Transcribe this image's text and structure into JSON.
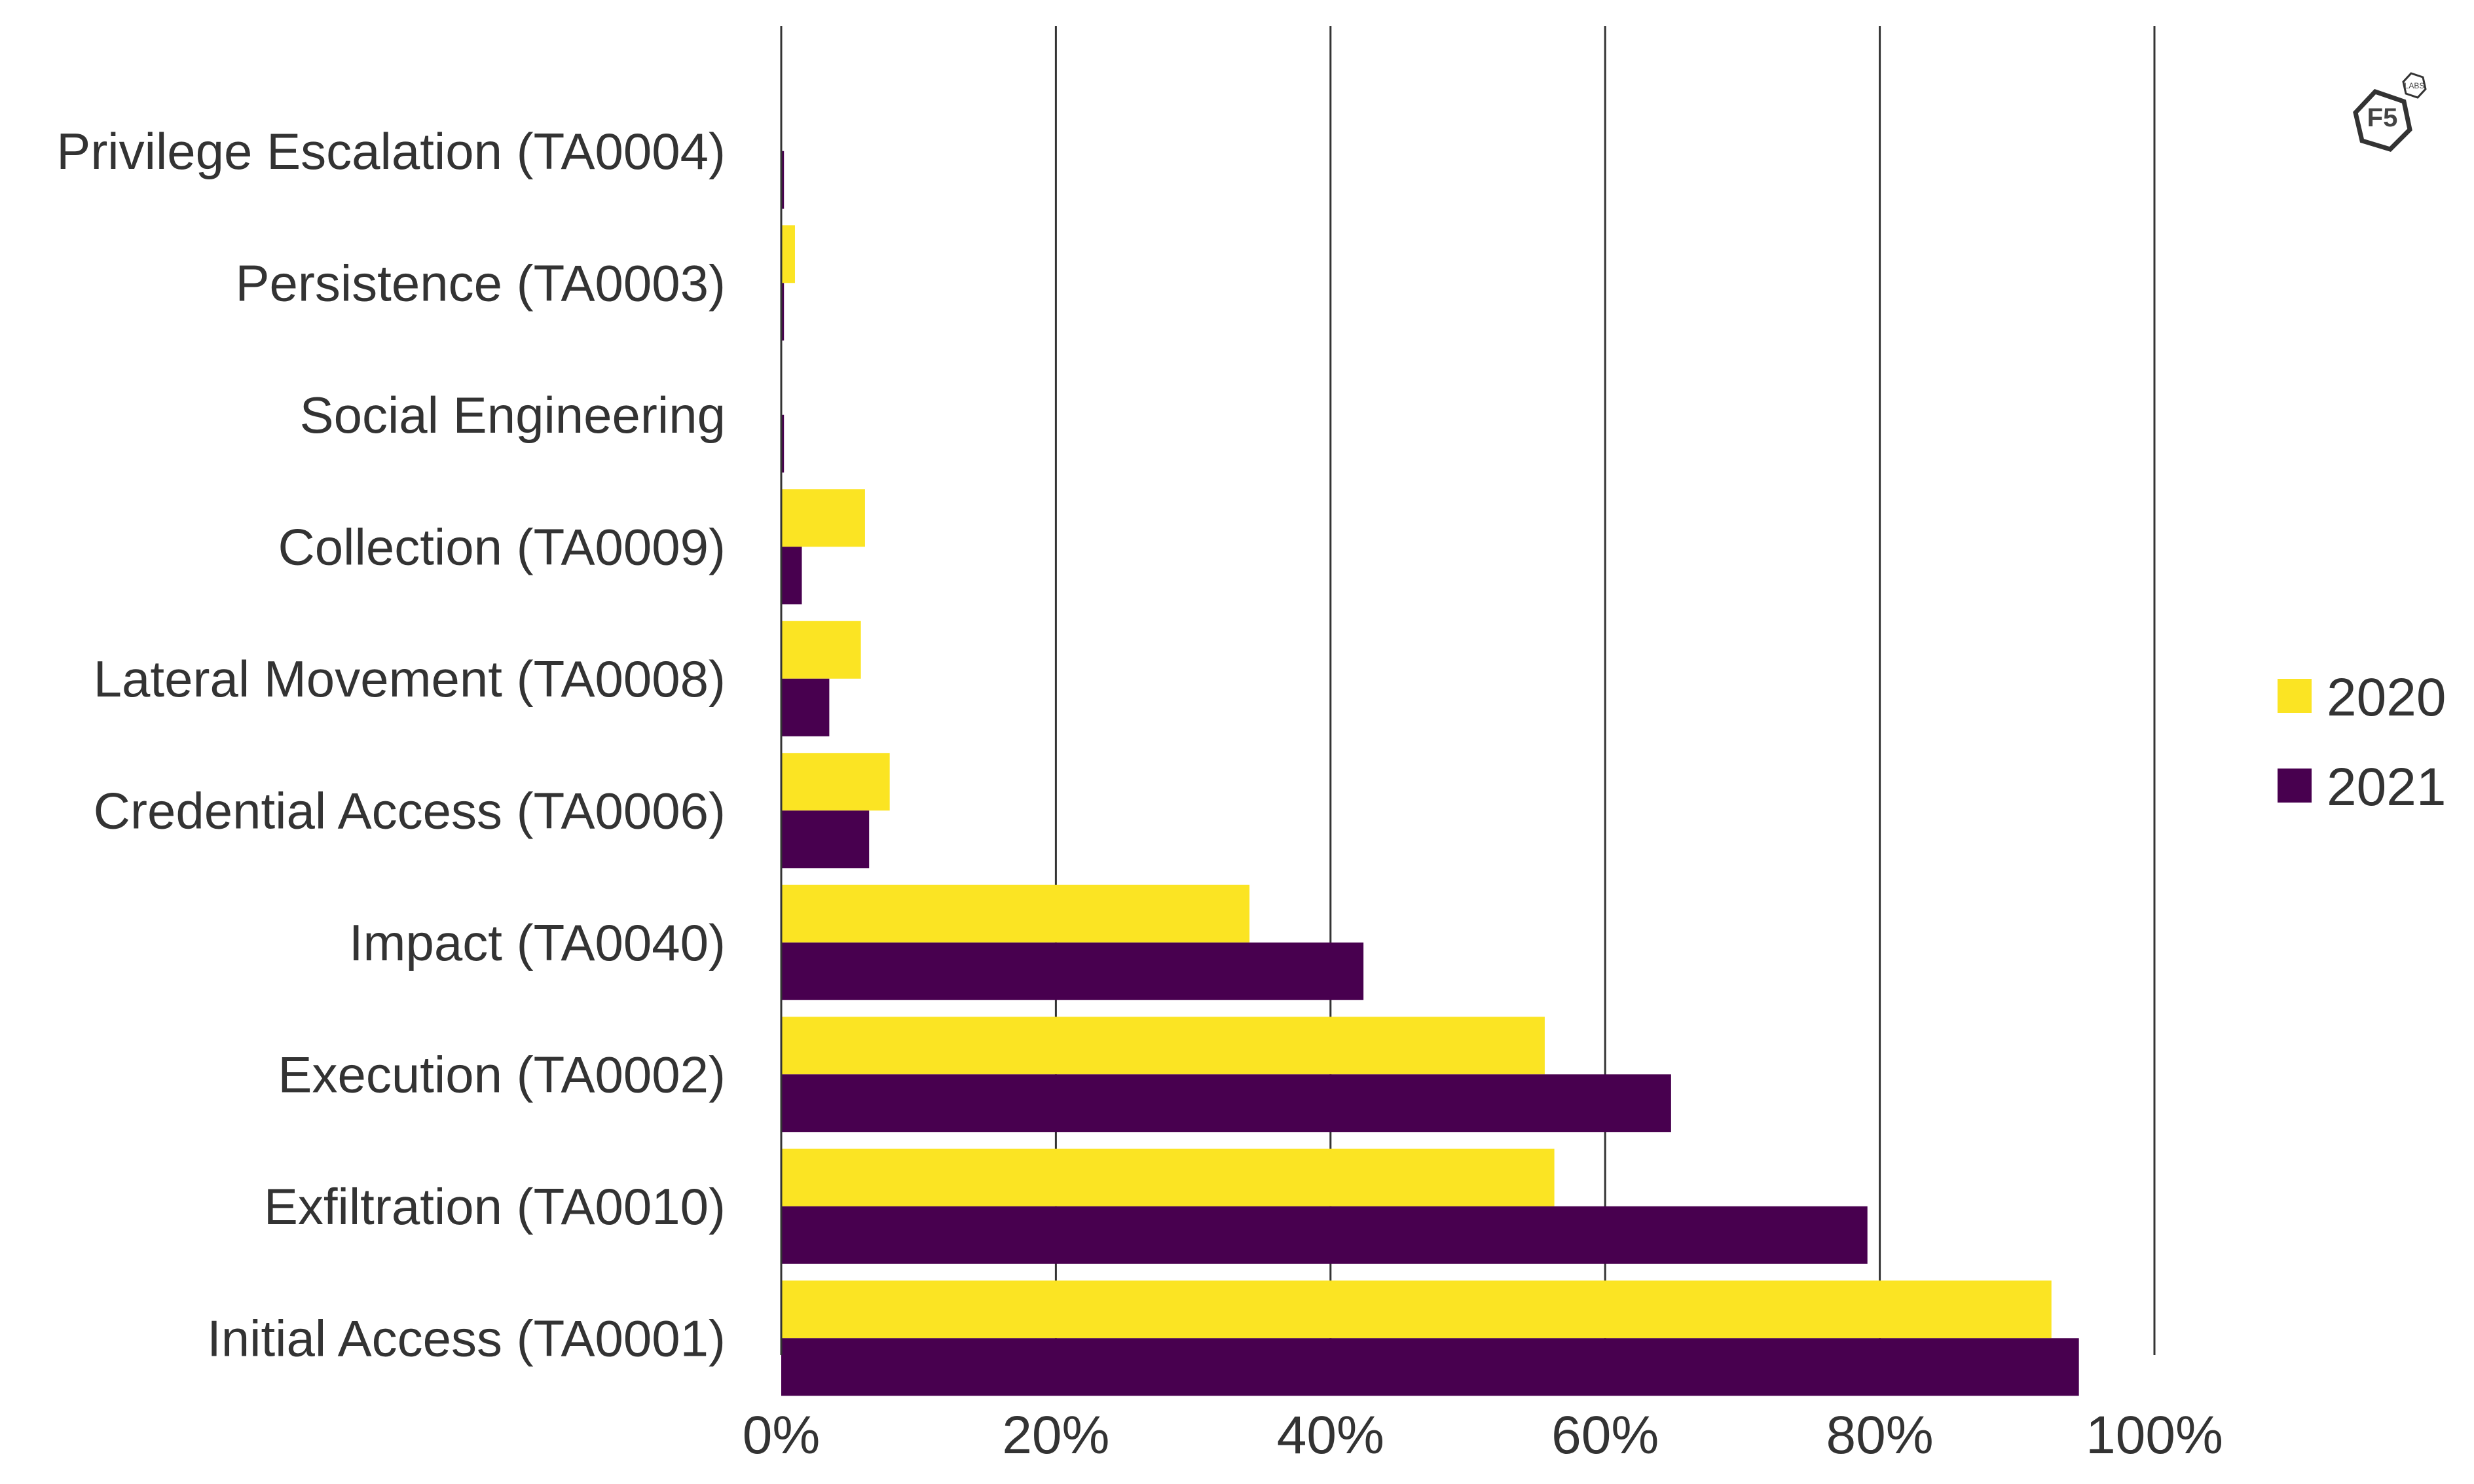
{
  "chart_data": {
    "type": "bar",
    "orientation": "horizontal",
    "categories": [
      "Privilege Escalation (TA0004)",
      "Persistence (TA0003)",
      "Social Engineering",
      "Collection (TA0009)",
      "Lateral Movement (TA0008)",
      "Credential Access (TA0006)",
      "Impact (TA0040)",
      "Execution (TA0002)",
      "Exfiltration (TA0010)",
      "Initial Access (TA0001)"
    ],
    "series": [
      {
        "name": "2020",
        "color": "#fbe423",
        "values": [
          0,
          1.0,
          0,
          6.1,
          5.8,
          7.9,
          34.1,
          55.6,
          56.3,
          92.5
        ]
      },
      {
        "name": "2021",
        "color": "#48004f",
        "values": [
          0.2,
          0.2,
          0.2,
          1.5,
          3.5,
          6.4,
          42.4,
          64.8,
          79.1,
          94.5
        ]
      }
    ],
    "xlim": [
      0,
      100
    ],
    "x_ticks": [
      0,
      20,
      40,
      60,
      80,
      100
    ],
    "x_tick_labels": [
      "0%",
      "20%",
      "40%",
      "60%",
      "80%",
      "100%"
    ],
    "grid": "vertical",
    "legend_position": "right"
  },
  "logo": {
    "text": "F5",
    "small_text": "LABS"
  }
}
